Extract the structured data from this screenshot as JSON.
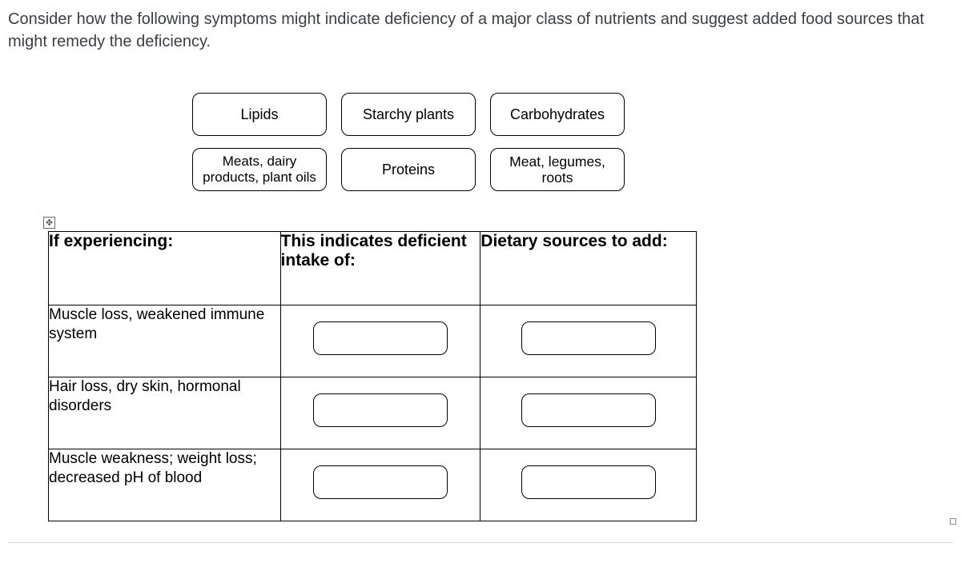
{
  "question": "Consider how the following symptoms might indicate deficiency of a major class of nutrients and suggest added food sources that might remedy the deficiency.",
  "tokens": {
    "row1": [
      "Lipids",
      "Starchy plants",
      "Carbohydrates"
    ],
    "row2": [
      "Meats, dairy products, plant oils",
      "Proteins",
      "Meat, legumes, roots"
    ]
  },
  "table": {
    "headers": {
      "symptom": "If experiencing:",
      "indicates": "This indicates deficient intake of:",
      "sources": "Dietary sources to add:"
    },
    "rows": [
      {
        "symptom": "Muscle loss, weakened immune system"
      },
      {
        "symptom": "Hair loss, dry skin, hormonal disorders"
      },
      {
        "symptom": "Muscle weakness; weight loss; decreased pH of blood"
      }
    ]
  },
  "icons": {
    "move": "✥"
  }
}
